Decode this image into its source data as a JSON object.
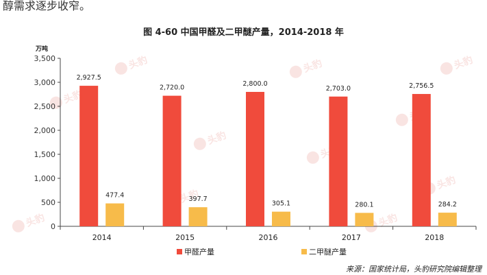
{
  "page": {
    "top_text": "醇需求逐步收窄。",
    "source": "来源：国家统计局，头豹研究院编辑整理",
    "watermark_text": "头豹"
  },
  "chart_data": {
    "type": "bar",
    "title": "图 4-60 中国甲醛及二甲醚产量，2014-2018 年",
    "unit": "万吨",
    "categories": [
      "2014",
      "2015",
      "2016",
      "2017",
      "2018"
    ],
    "ylim": [
      0,
      3500
    ],
    "yticks": [
      0,
      500,
      1000,
      1500,
      2000,
      2500,
      3000,
      3500
    ],
    "ytick_labels": [
      "0",
      "500",
      "1,000",
      "1,500",
      "2,000",
      "2,500",
      "3,000",
      "3,500"
    ],
    "grid": false,
    "legend_position": "bottom",
    "series": [
      {
        "name": "甲醛产量",
        "color": "#f04b3c",
        "values": [
          2927.5,
          2720.0,
          2800.0,
          2703.0,
          2756.5
        ],
        "labels": [
          "2,927.5",
          "2,720.0",
          "2,800.0",
          "2,703.0",
          "2,756.5"
        ]
      },
      {
        "name": "二甲醚产量",
        "color": "#f7bb4a",
        "values": [
          477.4,
          397.7,
          305.1,
          280.1,
          284.2
        ],
        "labels": [
          "477.4",
          "397.7",
          "305.1",
          "280.1",
          "284.2"
        ]
      }
    ]
  }
}
